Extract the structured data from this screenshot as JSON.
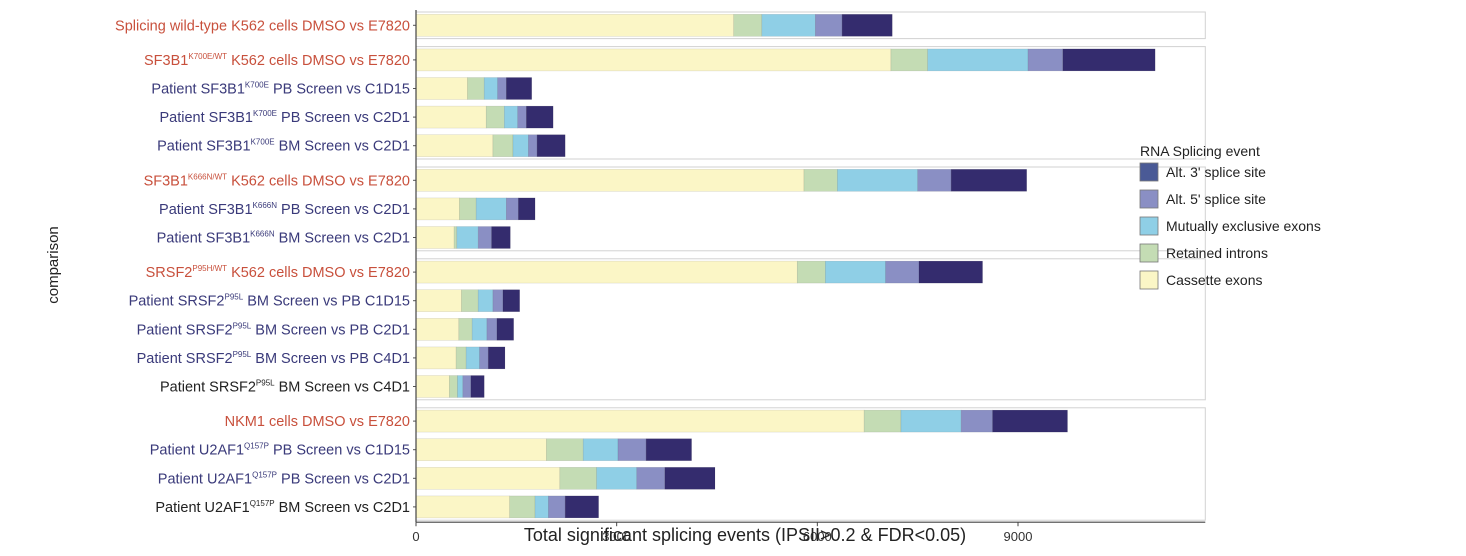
{
  "chart_data": {
    "type": "bar",
    "stacked": true,
    "orientation": "horizontal",
    "title": "",
    "xlabel": "Total significant splicing events (IPSII>0.2 & FDR<0.05)",
    "ylabel": "comparison",
    "xlim": [
      0,
      11800
    ],
    "xticks": [
      0,
      3000,
      6000,
      9000
    ],
    "groups": [
      {
        "rows": [
          {
            "label_pre": "Splicing wild-type K562 cells DMSO vs E7820",
            "sup": "",
            "label_post": "",
            "color": "#c8503c",
            "values": [
              4750,
              420,
              800,
              400,
              750
            ]
          }
        ]
      },
      {
        "rows": [
          {
            "label_pre": "SF3B1",
            "sup": "K700E/WT",
            "label_post": " K562 cells DMSO vs E7820",
            "color": "#c8503c",
            "values": [
              7100,
              550,
              1500,
              520,
              1380
            ]
          },
          {
            "label_pre": "Patient SF3B1",
            "sup": "K700E",
            "label_post": " PB Screen vs C1D15",
            "color": "#3a3a7a",
            "values": [
              770,
              250,
              200,
              130,
              380
            ]
          },
          {
            "label_pre": "Patient SF3B1",
            "sup": "K700E",
            "label_post": " PB Screen vs C2D1",
            "color": "#3a3a7a",
            "values": [
              1050,
              270,
              200,
              130,
              400
            ]
          },
          {
            "label_pre": "Patient SF3B1",
            "sup": "K700E",
            "label_post": " BM Screen vs C2D1",
            "color": "#3a3a7a",
            "values": [
              1150,
              300,
              230,
              130,
              420
            ]
          }
        ]
      },
      {
        "rows": [
          {
            "label_pre": "SF3B1",
            "sup": "K666N/WT",
            "label_post": " K562 cells DMSO vs E7820",
            "color": "#c8503c",
            "values": [
              5800,
              500,
              1200,
              500,
              1130
            ]
          },
          {
            "label_pre": "Patient SF3B1",
            "sup": "K666N",
            "label_post": " PB Screen vs C2D1",
            "color": "#3a3a7a",
            "values": [
              650,
              250,
              450,
              180,
              250
            ]
          },
          {
            "label_pre": "Patient SF3B1",
            "sup": "K666N",
            "label_post": " BM Screen vs C2D1",
            "color": "#3a3a7a",
            "values": [
              570,
              40,
              320,
              200,
              280
            ]
          }
        ]
      },
      {
        "rows": [
          {
            "label_pre": "SRSF2",
            "sup": "P95H/WT",
            "label_post": " K562 cells DMSO vs E7820",
            "color": "#c8503c",
            "values": [
              5700,
              420,
              900,
              500,
              950
            ]
          },
          {
            "label_pre": "Patient SRSF2",
            "sup": "P95L",
            "label_post": " BM Screen vs PB C1D15",
            "color": "#3a3a7a",
            "values": [
              680,
              250,
              220,
              150,
              250
            ]
          },
          {
            "label_pre": "Patient SRSF2",
            "sup": "P95L",
            "label_post": " BM Screen vs PB C2D1",
            "color": "#3a3a7a",
            "values": [
              640,
              200,
              220,
              150,
              250
            ]
          },
          {
            "label_pre": "Patient SRSF2",
            "sup": "P95L",
            "label_post": " BM Screen vs PB C4D1",
            "color": "#3a3a7a",
            "values": [
              600,
              150,
              200,
              130,
              250
            ]
          },
          {
            "label_pre": "Patient SRSF2",
            "sup": "P95L",
            "label_post": " BM Screen vs C4D1",
            "color": "#222222",
            "values": [
              500,
              120,
              80,
              120,
              200
            ]
          }
        ]
      },
      {
        "rows": [
          {
            "label_pre": "NKM1 cells DMSO vs E7820",
            "sup": "",
            "label_post": "",
            "color": "#c8503c",
            "values": [
              6700,
              550,
              900,
              470,
              1120
            ]
          },
          {
            "label_pre": "Patient U2AF1",
            "sup": "Q157P",
            "label_post": " PB Screen vs C1D15",
            "color": "#3a3a7a",
            "values": [
              1950,
              550,
              520,
              420,
              680
            ]
          },
          {
            "label_pre": "Patient U2AF1",
            "sup": "Q157P",
            "label_post": " PB Screen vs C2D1",
            "color": "#3a3a7a",
            "values": [
              2150,
              550,
              600,
              420,
              750
            ]
          },
          {
            "label_pre": "Patient U2AF1",
            "sup": "Q157P",
            "label_post": " BM Screen vs C2D1",
            "color": "#222222",
            "values": [
              1400,
              380,
              200,
              250,
              500
            ]
          }
        ]
      }
    ],
    "series": [
      {
        "name": "Cassette exons",
        "color": "#fbf6c6"
      },
      {
        "name": "Retained introns",
        "color": "#c4dcb4"
      },
      {
        "name": "Mutually exclusive exons",
        "color": "#8fcfe6"
      },
      {
        "name": "Alt. 5' splice site",
        "color": "#8a8fc4"
      },
      {
        "name": "Alt. 3' splice site",
        "color": "#342c6e"
      }
    ],
    "legend": {
      "title": "RNA Splicing event",
      "placement": "right",
      "items": [
        {
          "name": "Alt. 3' splice site",
          "color": "#4a5a96"
        },
        {
          "name": "Alt. 5' splice site",
          "color": "#8a8fc4"
        },
        {
          "name": "Mutually exclusive exons",
          "color": "#8fcfe6"
        },
        {
          "name": "Retained introns",
          "color": "#c4dcb4"
        },
        {
          "name": "Cassette exons",
          "color": "#fbf6c6"
        }
      ]
    }
  }
}
